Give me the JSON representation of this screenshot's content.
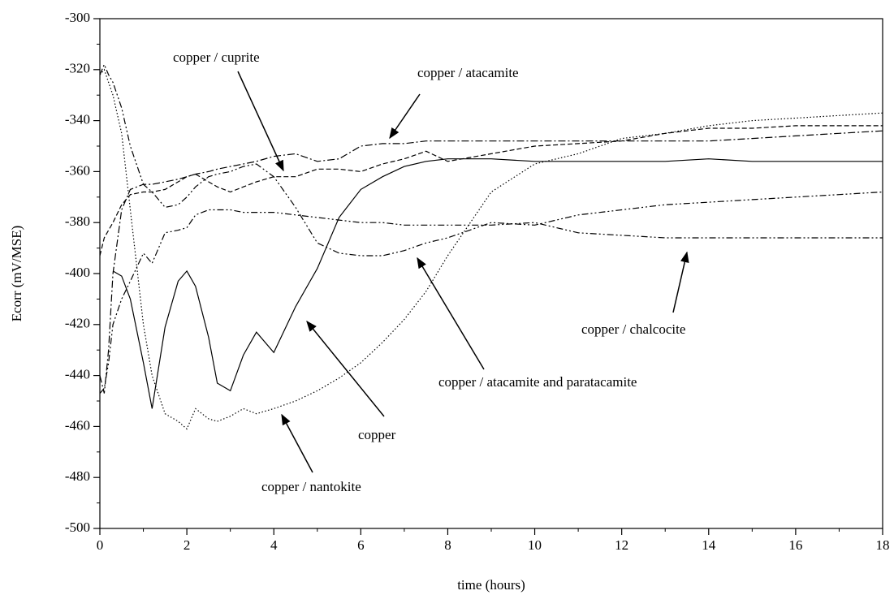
{
  "chart_data": {
    "type": "line",
    "xlabel": "time (hours)",
    "ylabel": "Ecorr (mV/MSE)",
    "x": [
      0,
      0.1,
      0.2,
      0.3,
      0.5,
      0.7,
      1,
      1.2,
      1.5,
      1.8,
      2,
      2.2,
      2.5,
      2.7,
      3,
      3.3,
      3.6,
      4,
      4.5,
      5,
      5.5,
      6,
      6.5,
      7,
      7.5,
      8,
      9,
      10,
      11,
      12,
      13,
      14,
      15,
      16,
      17,
      18
    ],
    "series": [
      {
        "name": "copper",
        "color": "#000000",
        "style": "solid",
        "values": [
          null,
          null,
          null,
          -399,
          -401,
          -410,
          -435,
          -453,
          -421,
          -403,
          -399,
          -405,
          -425,
          -443,
          -446,
          -432,
          -423,
          -431,
          -413,
          -398,
          -378,
          -367,
          -362,
          -358,
          -356,
          -355,
          -355,
          -356,
          -356,
          -356,
          -356,
          -355,
          -356,
          -356,
          -356,
          -356
        ]
      },
      {
        "name": "copper / cuprite",
        "color": "#000000",
        "style": "dashed",
        "values": [
          -393,
          -386,
          -383,
          -380,
          -373,
          -369,
          -368,
          -368,
          -367,
          -364,
          -362,
          -361,
          -364,
          -366,
          -368,
          -366,
          -364,
          -362,
          -362,
          -359,
          -359,
          -360,
          -357,
          -355,
          -352,
          -356,
          -353,
          -350,
          -349,
          -348,
          -345,
          -343,
          -343,
          -342,
          -342,
          -342
        ]
      },
      {
        "name": "copper / atacamite",
        "color": "#000000",
        "style": "dashdot",
        "values": [
          -440,
          -447,
          -430,
          -400,
          -375,
          -367,
          -365,
          -365,
          -364,
          -363,
          -362,
          -361,
          -360,
          -359,
          -358,
          -357,
          -356,
          -354,
          -353,
          -356,
          -355,
          -350,
          -349,
          -349,
          -348,
          -348,
          -348,
          -348,
          -348,
          -348,
          -348,
          -348,
          -347,
          -346,
          -345,
          -344
        ]
      },
      {
        "name": "copper / chalcocite",
        "color": "#000000",
        "style": "dashdotdot",
        "values": [
          -447,
          -445,
          -435,
          -420,
          -410,
          -403,
          -392,
          -396,
          -384,
          -383,
          -382,
          -377,
          -375,
          -375,
          -375,
          -376,
          -376,
          -376,
          -377,
          -378,
          -379,
          -380,
          -380,
          -381,
          -381,
          -381,
          -381,
          -380,
          -384,
          -385,
          -386,
          -386,
          -386,
          -386,
          -386,
          -386
        ]
      },
      {
        "name": "copper / atacamite and paratacamite",
        "color": "#000000",
        "style": "dashdotdot",
        "values": [
          -322,
          -318,
          -322,
          -325,
          -335,
          -350,
          -365,
          -368,
          -374,
          -373,
          -370,
          -366,
          -362,
          -361,
          -360,
          -358,
          -357,
          -362,
          -374,
          -388,
          -392,
          -393,
          -393,
          -391,
          -388,
          -386,
          -380,
          -381,
          -377,
          -375,
          -373,
          -372,
          -371,
          -370,
          -369,
          -368
        ]
      },
      {
        "name": "copper / nantokite",
        "color": "#000000",
        "style": "dotted",
        "values": [
          -322,
          -320,
          -325,
          -330,
          -345,
          -375,
          -420,
          -440,
          -455,
          -458,
          -461,
          -453,
          -457,
          -458,
          -456,
          -453,
          -455,
          -453,
          -450,
          -446,
          -441,
          -435,
          -427,
          -418,
          -407,
          -393,
          -368,
          -357,
          -353,
          -347,
          -345,
          -342,
          -340,
          -339,
          -338,
          -337
        ]
      }
    ],
    "xlim": [
      0,
      18
    ],
    "xticks": [
      0,
      2,
      4,
      6,
      8,
      10,
      12,
      14,
      16,
      18
    ],
    "ylim": [
      -500,
      -300
    ],
    "yticks": [
      -500,
      -480,
      -460,
      -440,
      -420,
      -400,
      -380,
      -360,
      -340,
      -320,
      -300
    ],
    "grid": false
  }
}
